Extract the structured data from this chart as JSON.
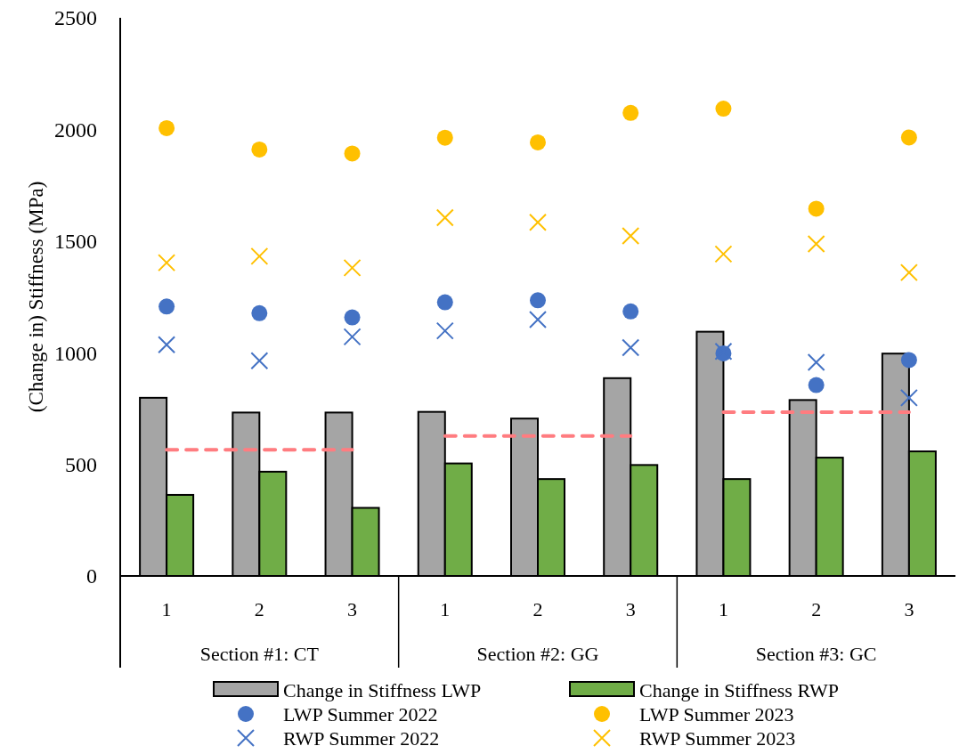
{
  "chart_data": {
    "type": "bar",
    "ylabel": "(Change in) Stiffness (MPa)",
    "categories": [
      "1",
      "2",
      "3",
      "1",
      "2",
      "3",
      "1",
      "2",
      "3"
    ],
    "annotations": [
      "Section #1: CT",
      "Section #2: GG",
      "Section #3: GC"
    ],
    "ylim": [
      0,
      2500
    ],
    "yticks": [
      0,
      500,
      1000,
      1500,
      2000,
      2500
    ],
    "grid": false,
    "legend": "bottom",
    "series": [
      {
        "name": "Change in Stiffness LWP",
        "color": "#a5a5a5",
        "values": [
          798,
          732,
          732,
          735,
          705,
          886,
          1094,
          788,
          996
        ]
      },
      {
        "name": "Change in Stiffness RWP",
        "color": "#70ad47",
        "values": [
          363,
          467,
          305,
          504,
          434,
          497,
          434,
          530,
          558
        ]
      },
      {
        "name": "LWP Summer 2022",
        "type": "scatter",
        "marker": "circle",
        "color": "#4472c4",
        "values": [
          1207,
          1177,
          1158,
          1226,
          1235,
          1185,
          997,
          855,
          967
        ]
      },
      {
        "name": "LWP Summer 2023",
        "type": "scatter",
        "marker": "circle",
        "color": "#ffc000",
        "values": [
          2006,
          1910,
          1892,
          1963,
          1942,
          2074,
          2093,
          1645,
          1964
        ]
      },
      {
        "name": "RWP Summer 2022",
        "type": "scatter",
        "marker": "cross",
        "color": "#4472c4",
        "values": [
          1036,
          964,
          1071,
          1098,
          1148,
          1023,
          1006,
          957,
          798
        ]
      },
      {
        "name": "RWP Summer 2023",
        "type": "scatter",
        "marker": "cross",
        "color": "#ffc000",
        "values": [
          1403,
          1432,
          1380,
          1605,
          1584,
          1523,
          1442,
          1487,
          1359
        ]
      },
      {
        "type": "line",
        "line_style": "dashed",
        "color": "#ff7c80",
        "values": [
          565,
          565,
          565,
          null,
          null,
          null,
          null,
          null,
          null
        ]
      },
      {
        "type": "line",
        "line_style": "dashed",
        "color": "#ff7c80",
        "values": [
          null,
          null,
          null,
          627,
          627,
          627,
          null,
          null,
          null
        ]
      },
      {
        "type": "line",
        "line_style": "dashed",
        "color": "#ff7c80",
        "values": [
          null,
          null,
          null,
          null,
          null,
          null,
          734,
          734,
          734
        ]
      }
    ]
  }
}
